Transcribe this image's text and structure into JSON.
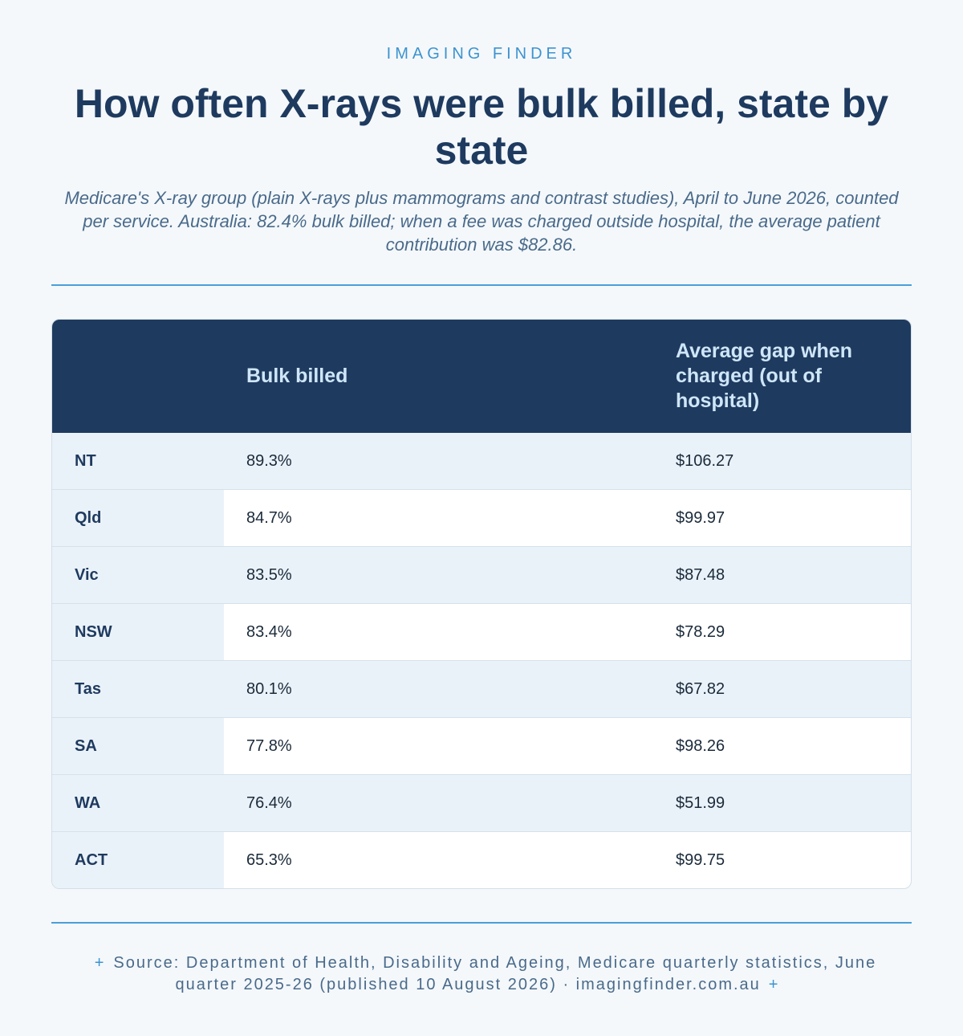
{
  "header": {
    "eyebrow": "IMAGING FINDER",
    "title": "How often X-rays were bulk billed, state by state",
    "subtitle": "Medicare's X-ray group (plain X-rays plus mammograms and contrast studies), April to June 2026, counted per service. Australia: 82.4% bulk billed; when a fee was charged outside hospital, the average patient contribution was $82.86."
  },
  "table": {
    "columns": [
      "",
      "Bulk billed",
      "Average gap when charged (out of hospital)"
    ],
    "rows": [
      {
        "state": "NT",
        "bulk_billed": "89.3%",
        "avg_gap": "$106.27"
      },
      {
        "state": "Qld",
        "bulk_billed": "84.7%",
        "avg_gap": "$99.97"
      },
      {
        "state": "Vic",
        "bulk_billed": "83.5%",
        "avg_gap": "$87.48"
      },
      {
        "state": "NSW",
        "bulk_billed": "83.4%",
        "avg_gap": "$78.29"
      },
      {
        "state": "Tas",
        "bulk_billed": "80.1%",
        "avg_gap": "$67.82"
      },
      {
        "state": "SA",
        "bulk_billed": "77.8%",
        "avg_gap": "$98.26"
      },
      {
        "state": "WA",
        "bulk_billed": "76.4%",
        "avg_gap": "$51.99"
      },
      {
        "state": "ACT",
        "bulk_billed": "65.3%",
        "avg_gap": "$99.75"
      }
    ]
  },
  "footer": {
    "plus_icon": "+",
    "text": "Source: Department of Health, Disability and Ageing, Medicare quarterly statistics, June quarter 2025-26 (published 10 August 2026) · imagingfinder.com.au"
  },
  "colors": {
    "navy": "#1e3a5f",
    "accent_blue": "#3d93cf",
    "background": "#f4f8fb",
    "row_tint": "#eaf2f9"
  }
}
